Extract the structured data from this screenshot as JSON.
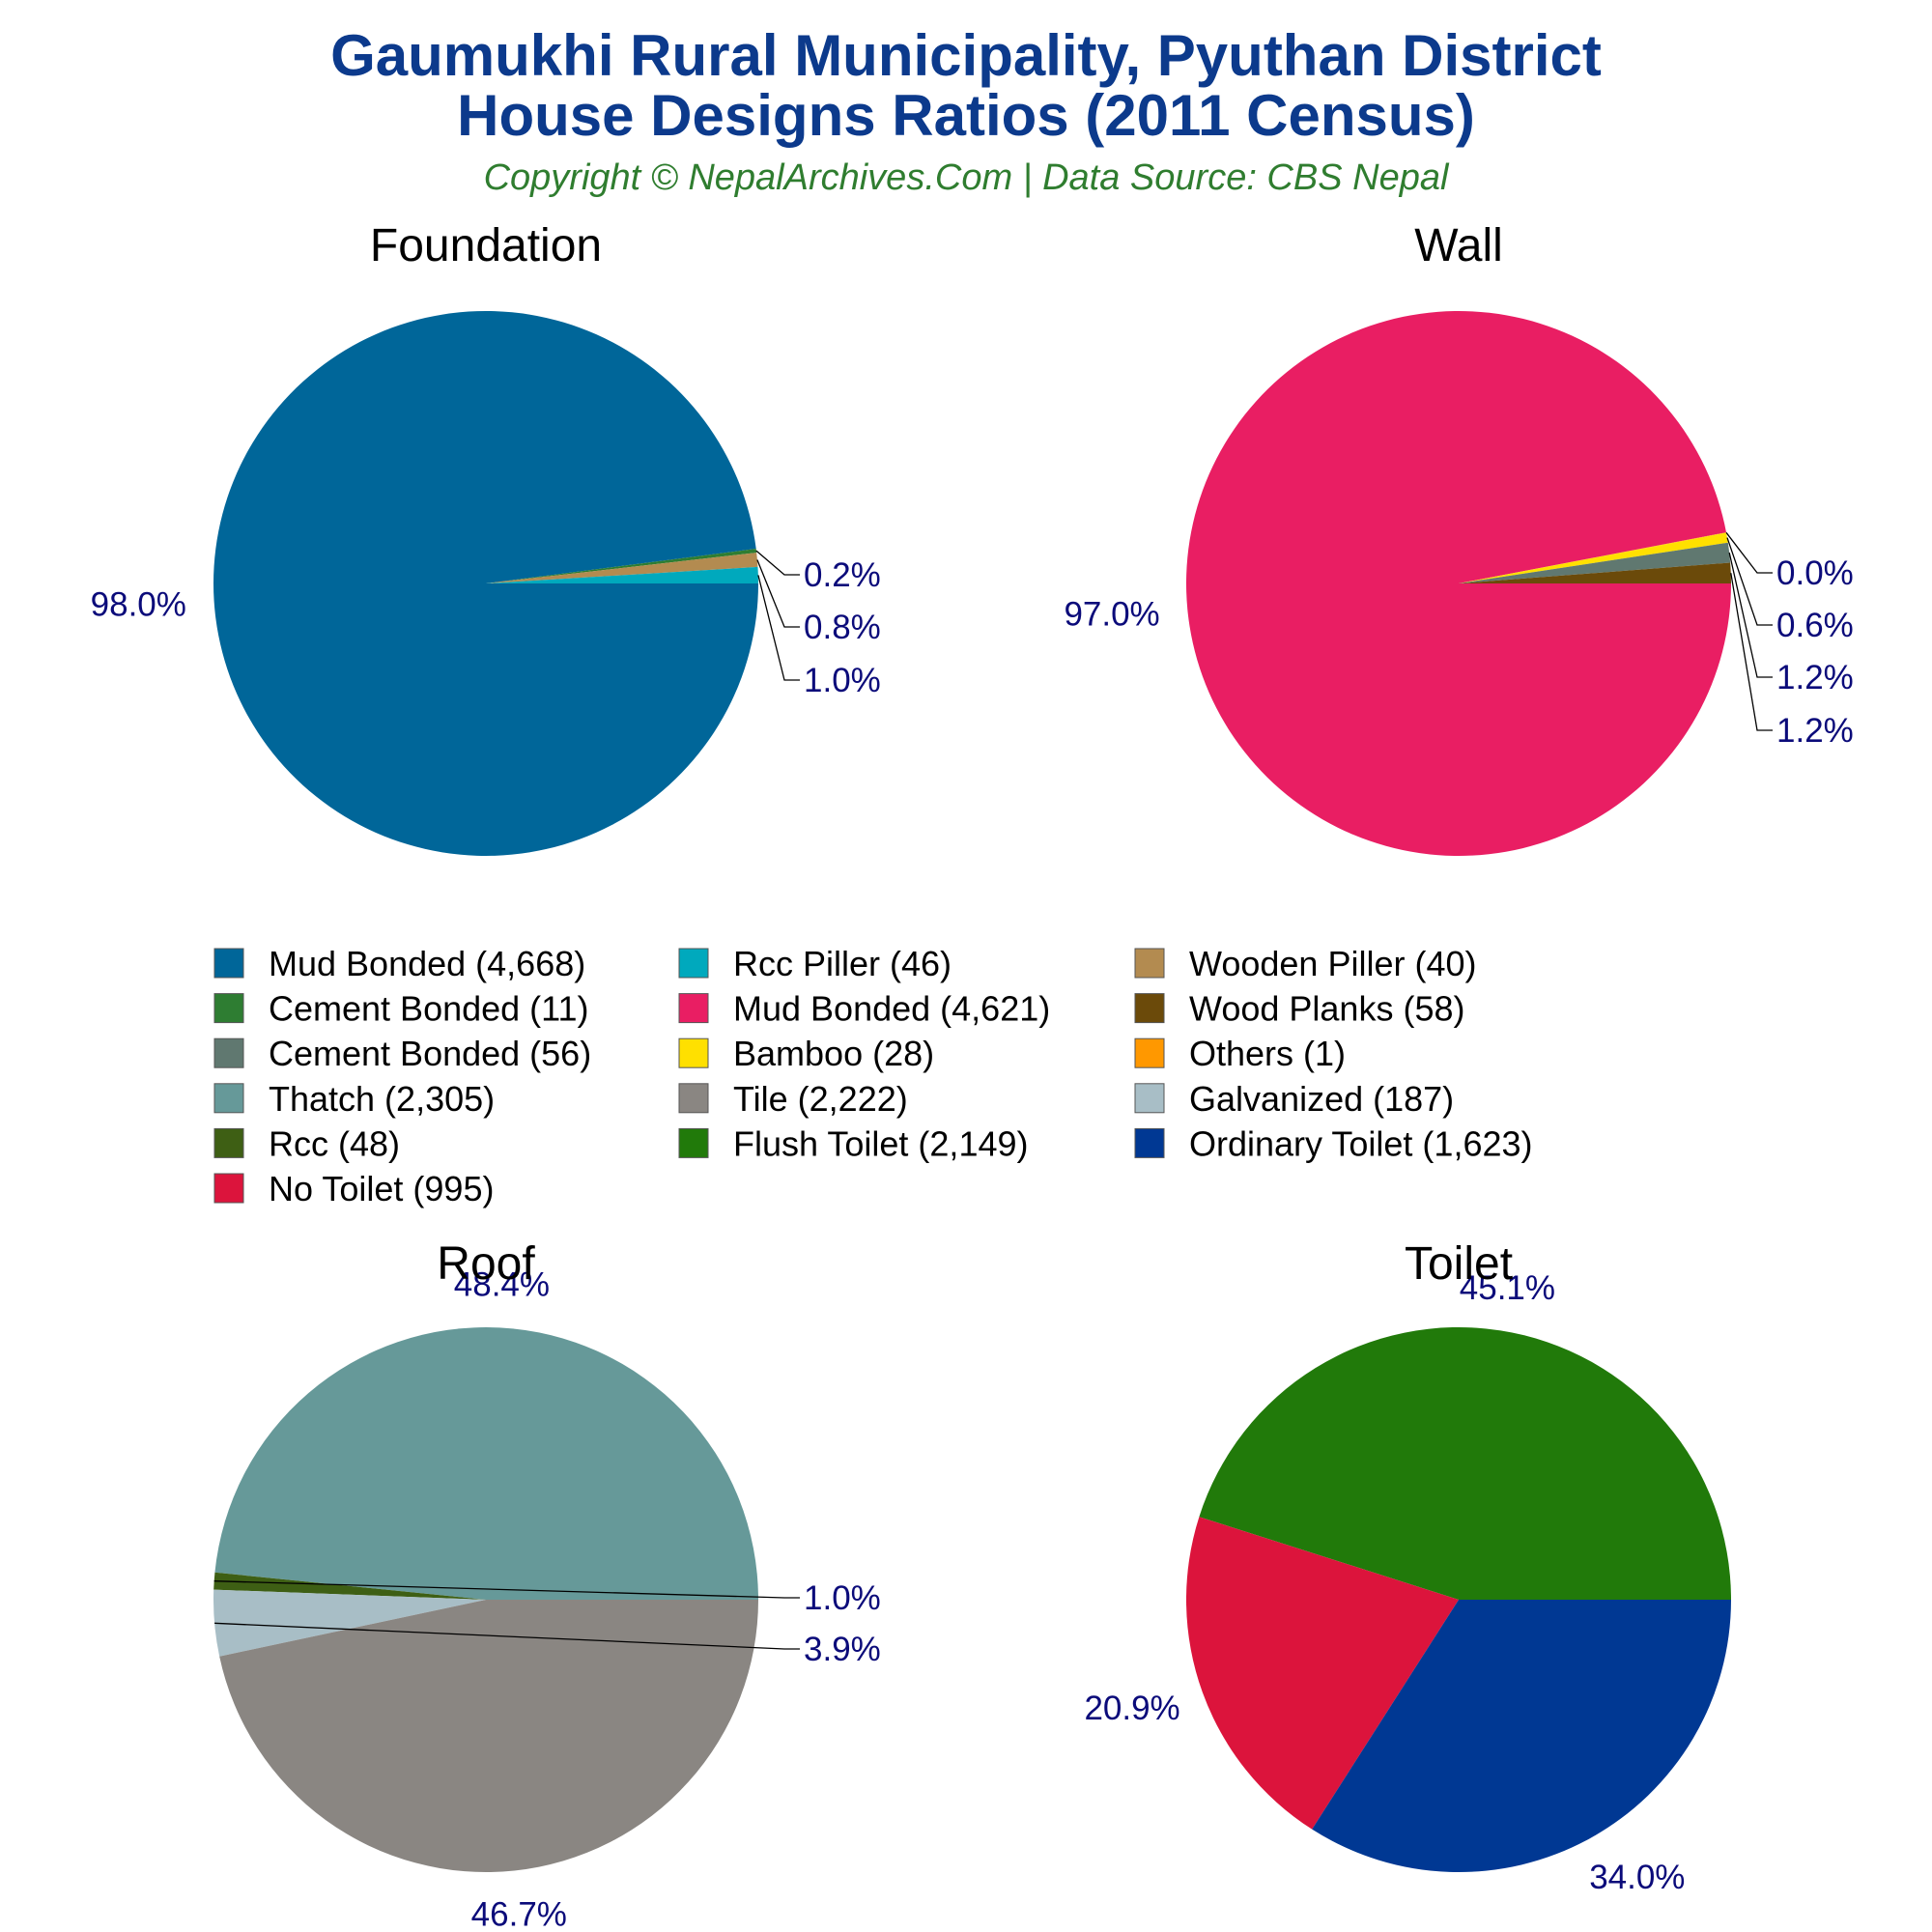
{
  "title_line1": "Gaumukhi Rural Municipality, Pyuthan District",
  "title_line2": "House Designs Ratios (2011 Census)",
  "subtitle": "Copyright © NepalArchives.Com | Data Source: CBS Nepal",
  "chart_data": [
    {
      "type": "pie",
      "title": "Foundation",
      "slices": [
        {
          "label": "Mud Bonded",
          "value": 4668,
          "pct_label": "98.0%",
          "color": "#006699"
        },
        {
          "label": "Cement Bonded",
          "value": 11,
          "pct_label": "0.2%",
          "color": "#2e7d32"
        },
        {
          "label": "Wooden Piller",
          "value": 40,
          "pct_label": "0.8%",
          "color": "#b38b50"
        },
        {
          "label": "Rcc Piller",
          "value": 46,
          "pct_label": "1.0%",
          "color": "#00a9bd"
        }
      ]
    },
    {
      "type": "pie",
      "title": "Wall",
      "slices": [
        {
          "label": "Mud Bonded",
          "value": 4621,
          "pct_label": "97.0%",
          "color": "#e91e63"
        },
        {
          "label": "Others",
          "value": 1,
          "pct_label": "0.0%",
          "color": "#ff9800"
        },
        {
          "label": "Bamboo",
          "value": 28,
          "pct_label": "0.6%",
          "color": "#ffe000"
        },
        {
          "label": "Cement Bonded",
          "value": 56,
          "pct_label": "1.2%",
          "color": "#607870"
        },
        {
          "label": "Wood Planks",
          "value": 58,
          "pct_label": "1.2%",
          "color": "#6b4a0a"
        }
      ]
    },
    {
      "type": "pie",
      "title": "Roof",
      "slices": [
        {
          "label": "Thatch",
          "value": 2305,
          "pct_label": "48.4%",
          "color": "#669999"
        },
        {
          "label": "Rcc",
          "value": 48,
          "pct_label": "1.0%",
          "color": "#3e5f14"
        },
        {
          "label": "Galvanized",
          "value": 187,
          "pct_label": "3.9%",
          "color": "#a8bec6"
        },
        {
          "label": "Tile",
          "value": 2222,
          "pct_label": "46.7%",
          "color": "#8a8682"
        }
      ]
    },
    {
      "type": "pie",
      "title": "Toilet",
      "slices": [
        {
          "label": "Flush Toilet",
          "value": 2149,
          "pct_label": "45.1%",
          "color": "#217a0a"
        },
        {
          "label": "No Toilet",
          "value": 995,
          "pct_label": "20.9%",
          "color": "#dc143c"
        },
        {
          "label": "Ordinary Toilet",
          "value": 1623,
          "pct_label": "34.0%",
          "color": "#003893"
        }
      ]
    }
  ],
  "legend": {
    "placement": "center",
    "items": [
      {
        "label": "Mud Bonded (4,668)",
        "color": "#006699"
      },
      {
        "label": "Rcc Piller (46)",
        "color": "#00a9bd"
      },
      {
        "label": "Wooden Piller (40)",
        "color": "#b38b50"
      },
      {
        "label": "Cement Bonded (11)",
        "color": "#2e7d32"
      },
      {
        "label": "Mud Bonded (4,621)",
        "color": "#e91e63"
      },
      {
        "label": "Wood Planks (58)",
        "color": "#6b4a0a"
      },
      {
        "label": "Cement Bonded (56)",
        "color": "#607870"
      },
      {
        "label": "Bamboo (28)",
        "color": "#ffe000"
      },
      {
        "label": "Others (1)",
        "color": "#ff9800"
      },
      {
        "label": "Thatch (2,305)",
        "color": "#669999"
      },
      {
        "label": "Tile (2,222)",
        "color": "#8a8682"
      },
      {
        "label": "Galvanized (187)",
        "color": "#a8bec6"
      },
      {
        "label": "Rcc (48)",
        "color": "#3e5f14"
      },
      {
        "label": "Flush Toilet (2,149)",
        "color": "#217a0a"
      },
      {
        "label": "Ordinary Toilet (1,623)",
        "color": "#003893"
      },
      {
        "label": "No Toilet (995)",
        "color": "#dc143c"
      }
    ]
  }
}
